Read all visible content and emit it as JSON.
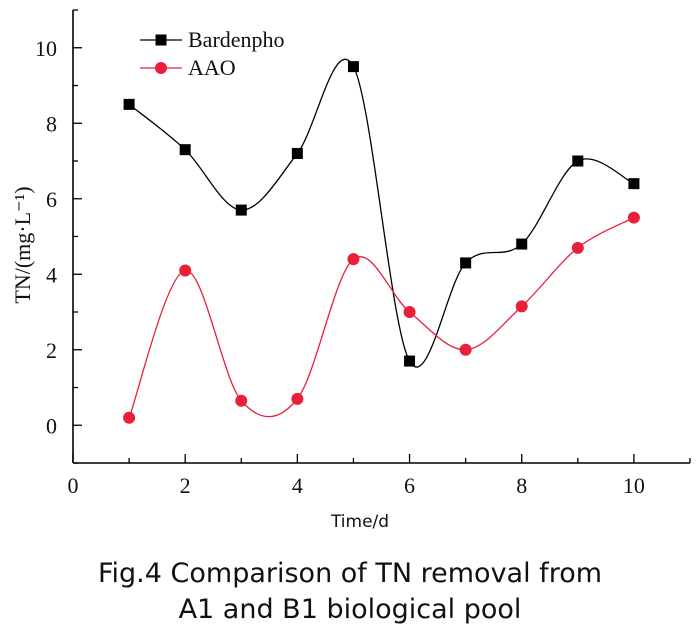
{
  "chart_data": {
    "type": "line",
    "title": "",
    "xlabel": "Time/d",
    "ylabel": "TN/(mg·L⁻¹)",
    "xlim": [
      0,
      11
    ],
    "ylim": [
      -1,
      11
    ],
    "xticks": [
      0,
      2,
      4,
      6,
      8,
      10
    ],
    "yticks": [
      0,
      2,
      4,
      6,
      8,
      10
    ],
    "legend_position": "top-left",
    "series": [
      {
        "name": "Bardenpho",
        "marker": "square",
        "color": "#000000",
        "x": [
          1,
          2,
          3,
          4,
          5,
          6,
          7,
          8,
          9,
          10
        ],
        "y": [
          8.5,
          7.3,
          5.7,
          7.2,
          9.5,
          1.7,
          4.3,
          4.8,
          7.0,
          6.4
        ]
      },
      {
        "name": "AAO",
        "marker": "circle",
        "color": "#e8203a",
        "x": [
          1,
          2,
          3,
          4,
          5,
          6,
          7,
          8,
          9,
          10
        ],
        "y": [
          0.2,
          4.1,
          0.65,
          0.7,
          4.4,
          3.0,
          2.0,
          3.15,
          4.7,
          5.5
        ]
      }
    ]
  },
  "caption": {
    "line1": "Fig.4 Comparison of TN removal from",
    "line2": "A1 and B1 biological pool"
  }
}
